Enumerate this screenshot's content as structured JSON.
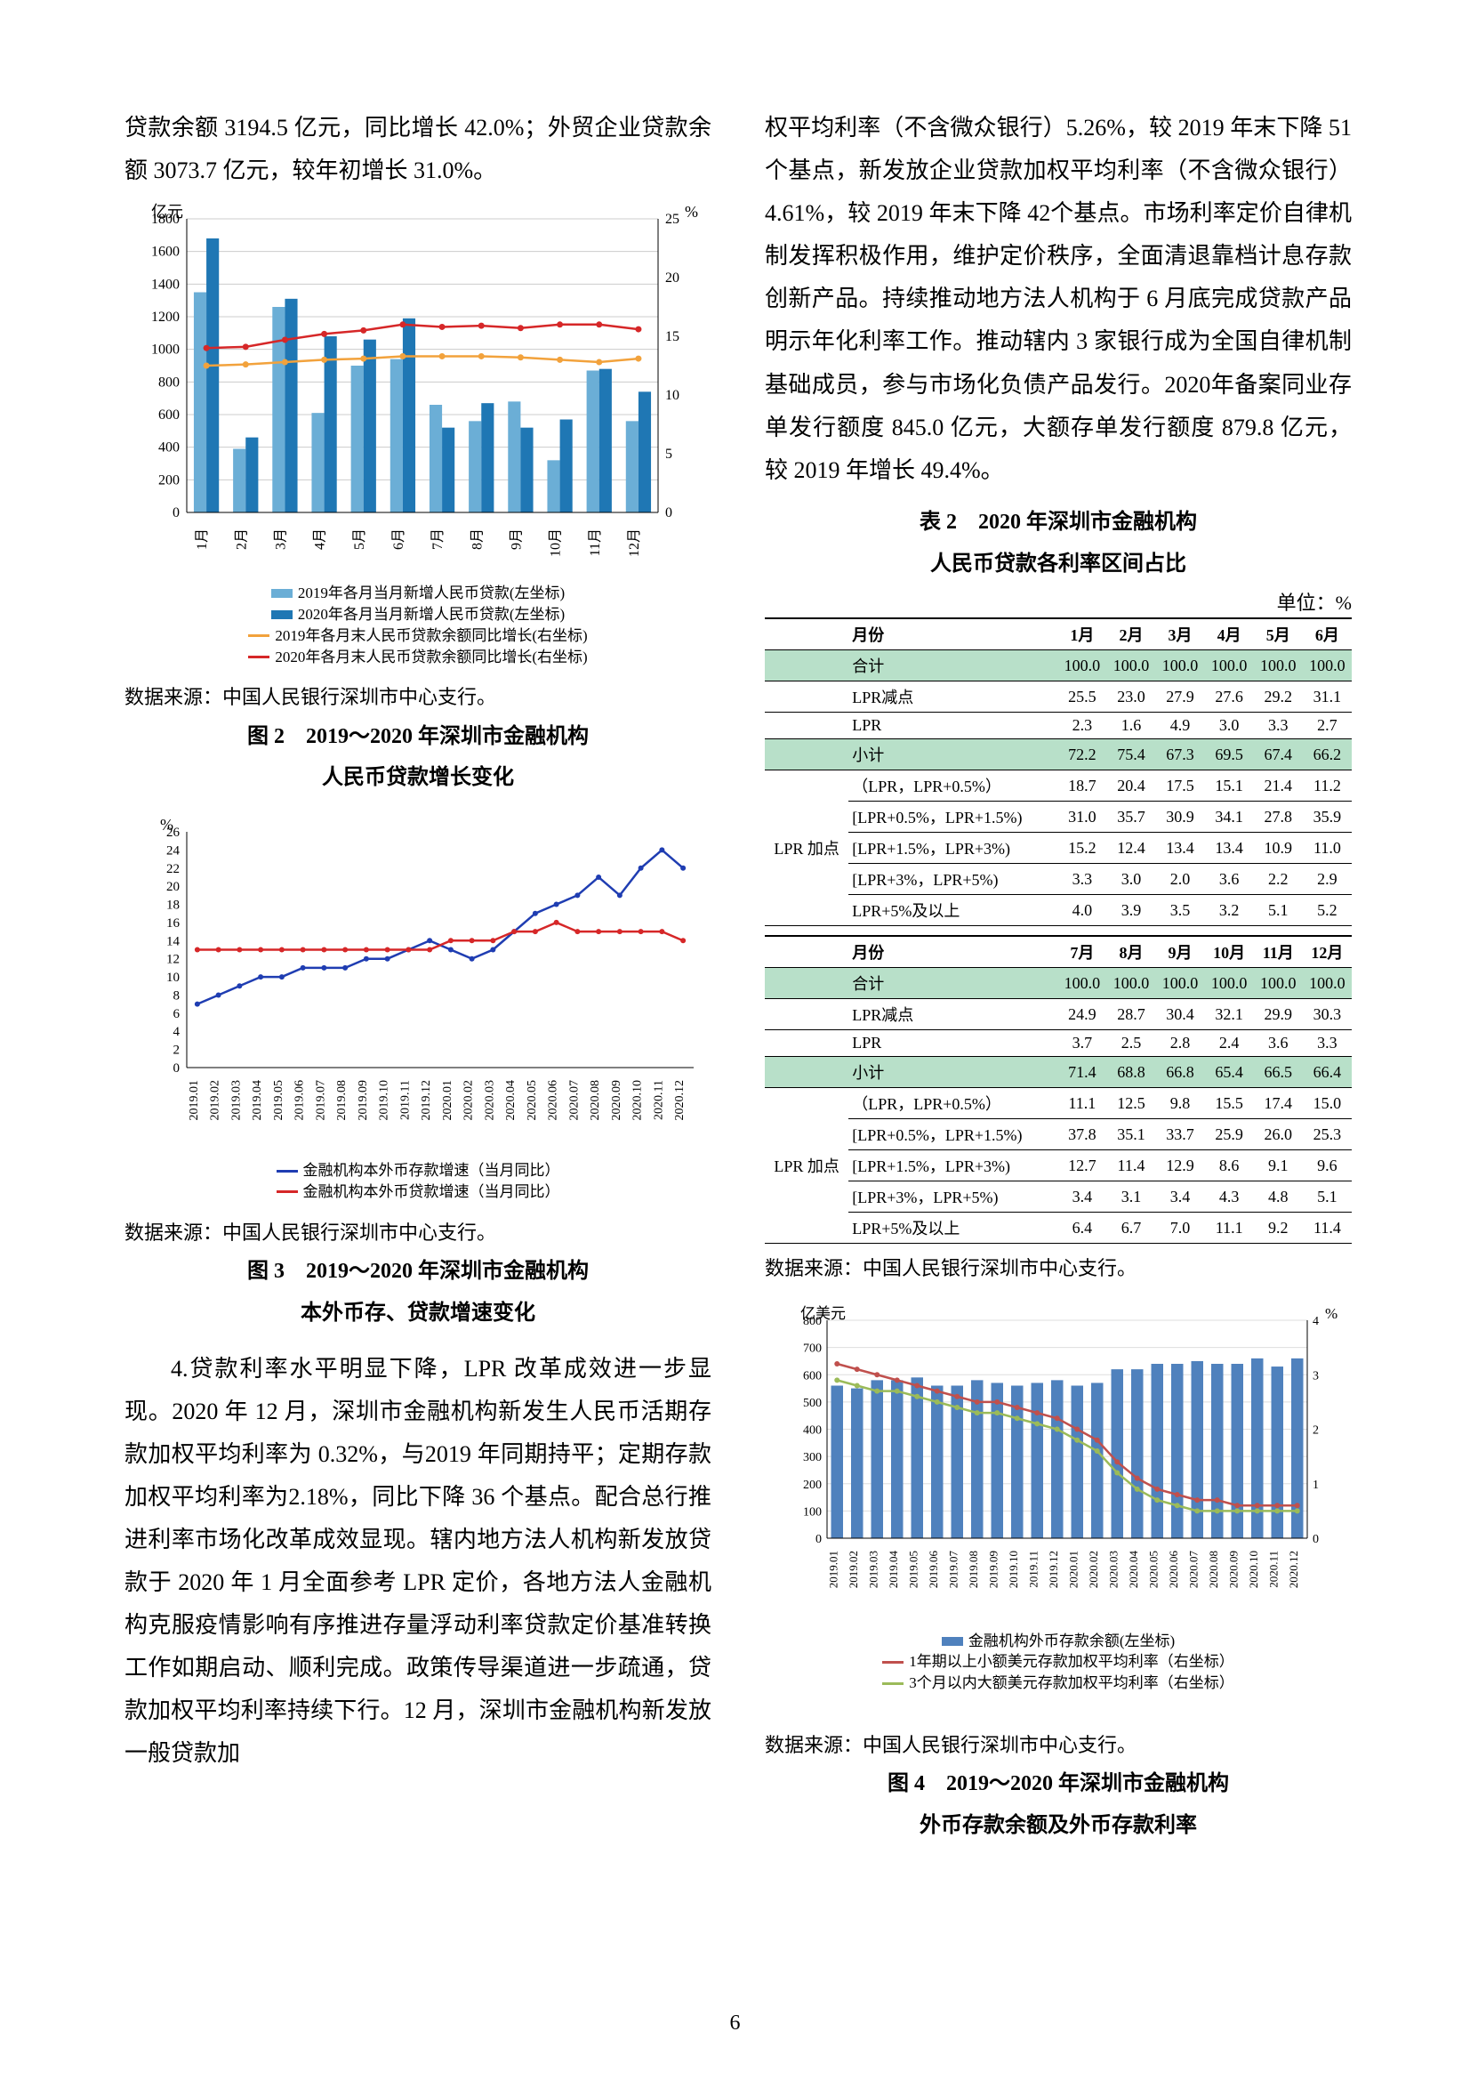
{
  "page_number": "6",
  "left_col": {
    "intro": "贷款余额 3194.5 亿元，同比增长 42.0%；外贸企业贷款余额 3073.7 亿元，较年初增长 31.0%。",
    "fig2": {
      "type": "bar+line",
      "left_axis_label": "亿元",
      "right_axis_label": "%",
      "left_ylim": [
        0,
        1800
      ],
      "left_ytick_step": 200,
      "right_ylim": [
        0,
        25
      ],
      "right_ytick_step": 5,
      "categories": [
        "1月",
        "2月",
        "3月",
        "4月",
        "5月",
        "6月",
        "7月",
        "8月",
        "9月",
        "10月",
        "11月",
        "12月"
      ],
      "bars_2019": [
        1350,
        390,
        1260,
        610,
        900,
        940,
        660,
        560,
        680,
        320,
        870,
        560
      ],
      "bars_2020": [
        1680,
        460,
        1310,
        1080,
        1060,
        1190,
        520,
        670,
        520,
        570,
        880,
        740
      ],
      "line_2019": [
        12.5,
        12.6,
        12.8,
        13.0,
        13.1,
        13.3,
        13.3,
        13.3,
        13.2,
        13.0,
        12.8,
        13.1
      ],
      "line_2020": [
        14.0,
        14.1,
        14.7,
        15.2,
        15.5,
        16.0,
        15.8,
        15.9,
        15.7,
        16.0,
        16.0,
        15.6
      ],
      "bar_2019_color": "#6baed6",
      "bar_2020_color": "#1f77b4",
      "line_2019_color": "#f2a23c",
      "line_2020_color": "#d62728",
      "legend": [
        "2019年各月当月新增人民币贷款(左坐标)",
        "2020年各月当月新增人民币贷款(左坐标)",
        "2019年各月末人民币贷款余额同比增长(右坐标)",
        "2020年各月末人民币贷款余额同比增长(右坐标)"
      ],
      "source": "数据来源：中国人民银行深圳市中心支行。",
      "caption_l1": "图 2　2019～2020 年深圳市金融机构",
      "caption_l2": "人民币贷款增长变化"
    },
    "fig3": {
      "type": "line",
      "ylabel": "%",
      "ylim": [
        0,
        26
      ],
      "ytick_step": 2,
      "categories": [
        "2019.01",
        "2019.02",
        "2019.03",
        "2019.04",
        "2019.05",
        "2019.06",
        "2019.07",
        "2019.08",
        "2019.09",
        "2019.10",
        "2019.11",
        "2019.12",
        "2020.01",
        "2020.02",
        "2020.03",
        "2020.04",
        "2020.05",
        "2020.06",
        "2020.07",
        "2020.08",
        "2020.09",
        "2020.10",
        "2020.11",
        "2020.12"
      ],
      "deposit_line": [
        7,
        8,
        9,
        10,
        10,
        11,
        11,
        11,
        12,
        12,
        13,
        14,
        13,
        12,
        13,
        15,
        17,
        18,
        19,
        21,
        19,
        22,
        24,
        22
      ],
      "loan_line": [
        13,
        13,
        13,
        13,
        13,
        13,
        13,
        13,
        13,
        13,
        13,
        13,
        14,
        14,
        14,
        15,
        15,
        16,
        15,
        15,
        15,
        15,
        15,
        14
      ],
      "deposit_color": "#1f3db2",
      "loan_color": "#d62728",
      "legend": [
        "金融机构本外币存款增速（当月同比）",
        "金融机构本外币贷款增速（当月同比）"
      ],
      "source": "数据来源：中国人民银行深圳市中心支行。",
      "caption_l1": "图 3　2019～2020 年深圳市金融机构",
      "caption_l2": "本外币存、贷款增速变化"
    },
    "para4": "4.贷款利率水平明显下降，LPR 改革成效进一步显现。2020 年 12 月，深圳市金融机构新发生人民币活期存款加权平均利率为 0.32%，与2019 年同期持平；定期存款加权平均利率为2.18%，同比下降 36 个基点。配合总行推进利率市场化改革成效显现。辖内地方法人机构新发放贷款于 2020 年 1 月全面参考 LPR 定价，各地方法人金融机构克服疫情影响有序推进存量浮动利率贷款定价基准转换工作如期启动、顺利完成。政策传导渠道进一步疏通，贷款加权平均利率持续下行。12 月，深圳市金融机构新发放一般贷款加"
  },
  "right_col": {
    "cont": "权平均利率（不含微众银行）5.26%，较 2019 年末下降 51 个基点，新发放企业贷款加权平均利率（不含微众银行）4.61%，较 2019 年末下降 42个基点。市场利率定价自律机制发挥积极作用，维护定价秩序，全面清退靠档计息存款创新产品。持续推动地方法人机构于 6 月底完成贷款产品明示年化利率工作。推动辖内 3 家银行成为全国自律机制基础成员，参与市场化负债产品发行。2020年备案同业存单发行额度 845.0 亿元，大额存单发行额度 879.8 亿元，较 2019 年增长 49.4%。",
    "tbl2": {
      "caption_l1": "表 2　2020 年深圳市金融机构",
      "caption_l2": "人民币贷款各利率区间占比",
      "unit": "单位：%",
      "months_a": [
        "1月",
        "2月",
        "3月",
        "4月",
        "5月",
        "6月"
      ],
      "months_b": [
        "7月",
        "8月",
        "9月",
        "10月",
        "11月",
        "12月"
      ],
      "side_label": "LPR\n加点",
      "row_labels": {
        "total": "合计",
        "lpr_minus": "LPR减点",
        "lpr": "LPR",
        "subtotal": "小计",
        "r05": "（LPR，LPR+0.5%）",
        "r15": "[LPR+0.5%，LPR+1.5%)",
        "r3": "[LPR+1.5%，LPR+3%)",
        "r5": "[LPR+3%，LPR+5%)",
        "r5p": "LPR+5%及以上"
      },
      "block_a": {
        "total": [
          "100.0",
          "100.0",
          "100.0",
          "100.0",
          "100.0",
          "100.0"
        ],
        "lpr_minus": [
          "25.5",
          "23.0",
          "27.9",
          "27.6",
          "29.2",
          "31.1"
        ],
        "lpr": [
          "2.3",
          "1.6",
          "4.9",
          "3.0",
          "3.3",
          "2.7"
        ],
        "subtotal": [
          "72.2",
          "75.4",
          "67.3",
          "69.5",
          "67.4",
          "66.2"
        ],
        "r05": [
          "18.7",
          "20.4",
          "17.5",
          "15.1",
          "21.4",
          "11.2"
        ],
        "r15": [
          "31.0",
          "35.7",
          "30.9",
          "34.1",
          "27.8",
          "35.9"
        ],
        "r3": [
          "15.2",
          "12.4",
          "13.4",
          "13.4",
          "10.9",
          "11.0"
        ],
        "r5": [
          "3.3",
          "3.0",
          "2.0",
          "3.6",
          "2.2",
          "2.9"
        ],
        "r5p": [
          "4.0",
          "3.9",
          "3.5",
          "3.2",
          "5.1",
          "5.2"
        ]
      },
      "block_b": {
        "total": [
          "100.0",
          "100.0",
          "100.0",
          "100.0",
          "100.0",
          "100.0"
        ],
        "lpr_minus": [
          "24.9",
          "28.7",
          "30.4",
          "32.1",
          "29.9",
          "30.3"
        ],
        "lpr": [
          "3.7",
          "2.5",
          "2.8",
          "2.4",
          "3.6",
          "3.3"
        ],
        "subtotal": [
          "71.4",
          "68.8",
          "66.8",
          "65.4",
          "66.5",
          "66.4"
        ],
        "r05": [
          "11.1",
          "12.5",
          "9.8",
          "15.5",
          "17.4",
          "15.0"
        ],
        "r15": [
          "37.8",
          "35.1",
          "33.7",
          "25.9",
          "26.0",
          "25.3"
        ],
        "r3": [
          "12.7",
          "11.4",
          "12.9",
          "8.6",
          "9.1",
          "9.6"
        ],
        "r5": [
          "3.4",
          "3.1",
          "3.4",
          "4.3",
          "4.8",
          "5.1"
        ],
        "r5p": [
          "6.4",
          "6.7",
          "7.0",
          "11.1",
          "9.2",
          "11.4"
        ]
      },
      "source": "数据来源：中国人民银行深圳市中心支行。",
      "hl_color": "#b8e0c9"
    },
    "fig4": {
      "type": "bar+line",
      "left_axis_label": "亿美元",
      "right_axis_label": "%",
      "left_ylim": [
        0,
        800
      ],
      "left_ytick_step": 100,
      "right_ylim": [
        0,
        4
      ],
      "right_ytick_step": 1,
      "categories": [
        "2019.01",
        "2019.02",
        "2019.03",
        "2019.04",
        "2019.05",
        "2019.06",
        "2019.07",
        "2019.08",
        "2019.09",
        "2019.10",
        "2019.11",
        "2019.12",
        "2020.01",
        "2020.02",
        "2020.03",
        "2020.04",
        "2020.05",
        "2020.06",
        "2020.07",
        "2020.08",
        "2020.09",
        "2020.10",
        "2020.11",
        "2020.12"
      ],
      "bars": [
        560,
        550,
        580,
        580,
        590,
        560,
        560,
        580,
        570,
        560,
        570,
        580,
        560,
        570,
        620,
        620,
        640,
        640,
        650,
        640,
        640,
        660,
        630,
        660
      ],
      "line1": [
        3.2,
        3.1,
        3.0,
        2.9,
        2.8,
        2.7,
        2.6,
        2.5,
        2.5,
        2.4,
        2.3,
        2.2,
        2.0,
        1.8,
        1.4,
        1.1,
        0.9,
        0.8,
        0.7,
        0.7,
        0.6,
        0.6,
        0.6,
        0.6
      ],
      "line2": [
        2.9,
        2.8,
        2.7,
        2.7,
        2.6,
        2.5,
        2.4,
        2.3,
        2.3,
        2.2,
        2.1,
        2.0,
        1.8,
        1.6,
        1.2,
        0.9,
        0.7,
        0.6,
        0.5,
        0.5,
        0.5,
        0.5,
        0.5,
        0.5
      ],
      "bar_color": "#4f81bd",
      "line1_color": "#c0504d",
      "line2_color": "#9bbb59",
      "legend": [
        "金融机构外币存款余额(左坐标)",
        "1年期以上小额美元存款加权平均利率（右坐标）",
        "3个月以内大额美元存款加权平均利率（右坐标）"
      ],
      "source": "数据来源：中国人民银行深圳市中心支行。",
      "caption_l1": "图 4　2019～2020 年深圳市金融机构",
      "caption_l2": "外币存款余额及外币存款利率"
    }
  }
}
